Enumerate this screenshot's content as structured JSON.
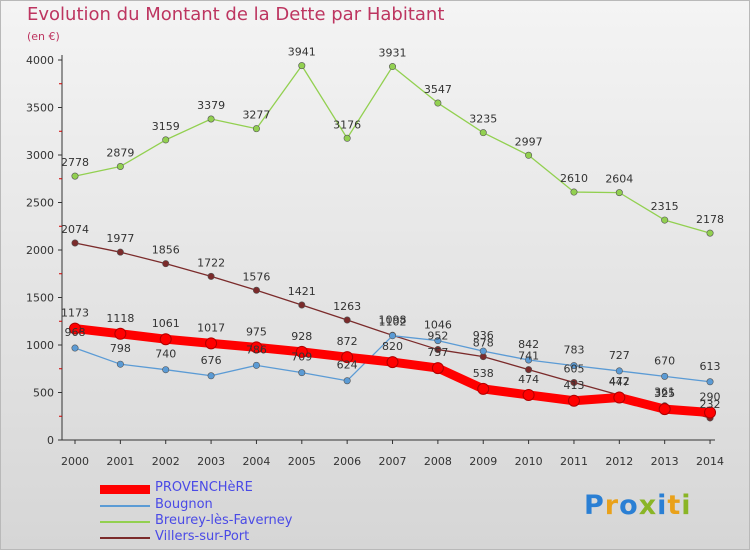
{
  "title": "Evolution du Montant de la Dette par Habitant",
  "subtitle": "(en €)",
  "logo_text": "Proxiti",
  "chart_data": {
    "type": "line",
    "title": "Evolution du Montant de la Dette par Habitant",
    "ylabel": "(en €)",
    "xlabel": "",
    "ylim": [
      0,
      4000
    ],
    "yticks": [
      0,
      500,
      1000,
      1500,
      2000,
      2500,
      3000,
      3500,
      4000
    ],
    "grid": false,
    "legend_position": "bottom-left",
    "x": [
      "2000",
      "2001",
      "2002",
      "2003",
      "2004",
      "2005",
      "2006",
      "2007",
      "2008",
      "2009",
      "2010",
      "2011",
      "2012",
      "2013",
      "2014"
    ],
    "series": [
      {
        "name": "PROVENCHèRE",
        "color": "#ff0000",
        "values": [
          1173,
          1118,
          1061,
          1017,
          975,
          928,
          872,
          820,
          757,
          538,
          474,
          413,
          447,
          325,
          290
        ]
      },
      {
        "name": "Bougnon",
        "color": "#5b9bd5",
        "values": [
          968,
          798,
          740,
          676,
          786,
          709,
          624,
          1098,
          1046,
          936,
          842,
          783,
          727,
          670,
          613
        ]
      },
      {
        "name": "Breurey-lès-Faverney",
        "color": "#92d050",
        "values": [
          2778,
          2879,
          3159,
          3379,
          3277,
          3941,
          3176,
          3931,
          3547,
          3235,
          2997,
          2610,
          2604,
          2315,
          2178
        ]
      },
      {
        "name": "Villers-sur-Port",
        "color": "#7b2b2b",
        "values": [
          2074,
          1977,
          1856,
          1722,
          1576,
          1421,
          1263,
          1102,
          952,
          878,
          741,
          605,
          472,
          361,
          232
        ]
      }
    ]
  }
}
